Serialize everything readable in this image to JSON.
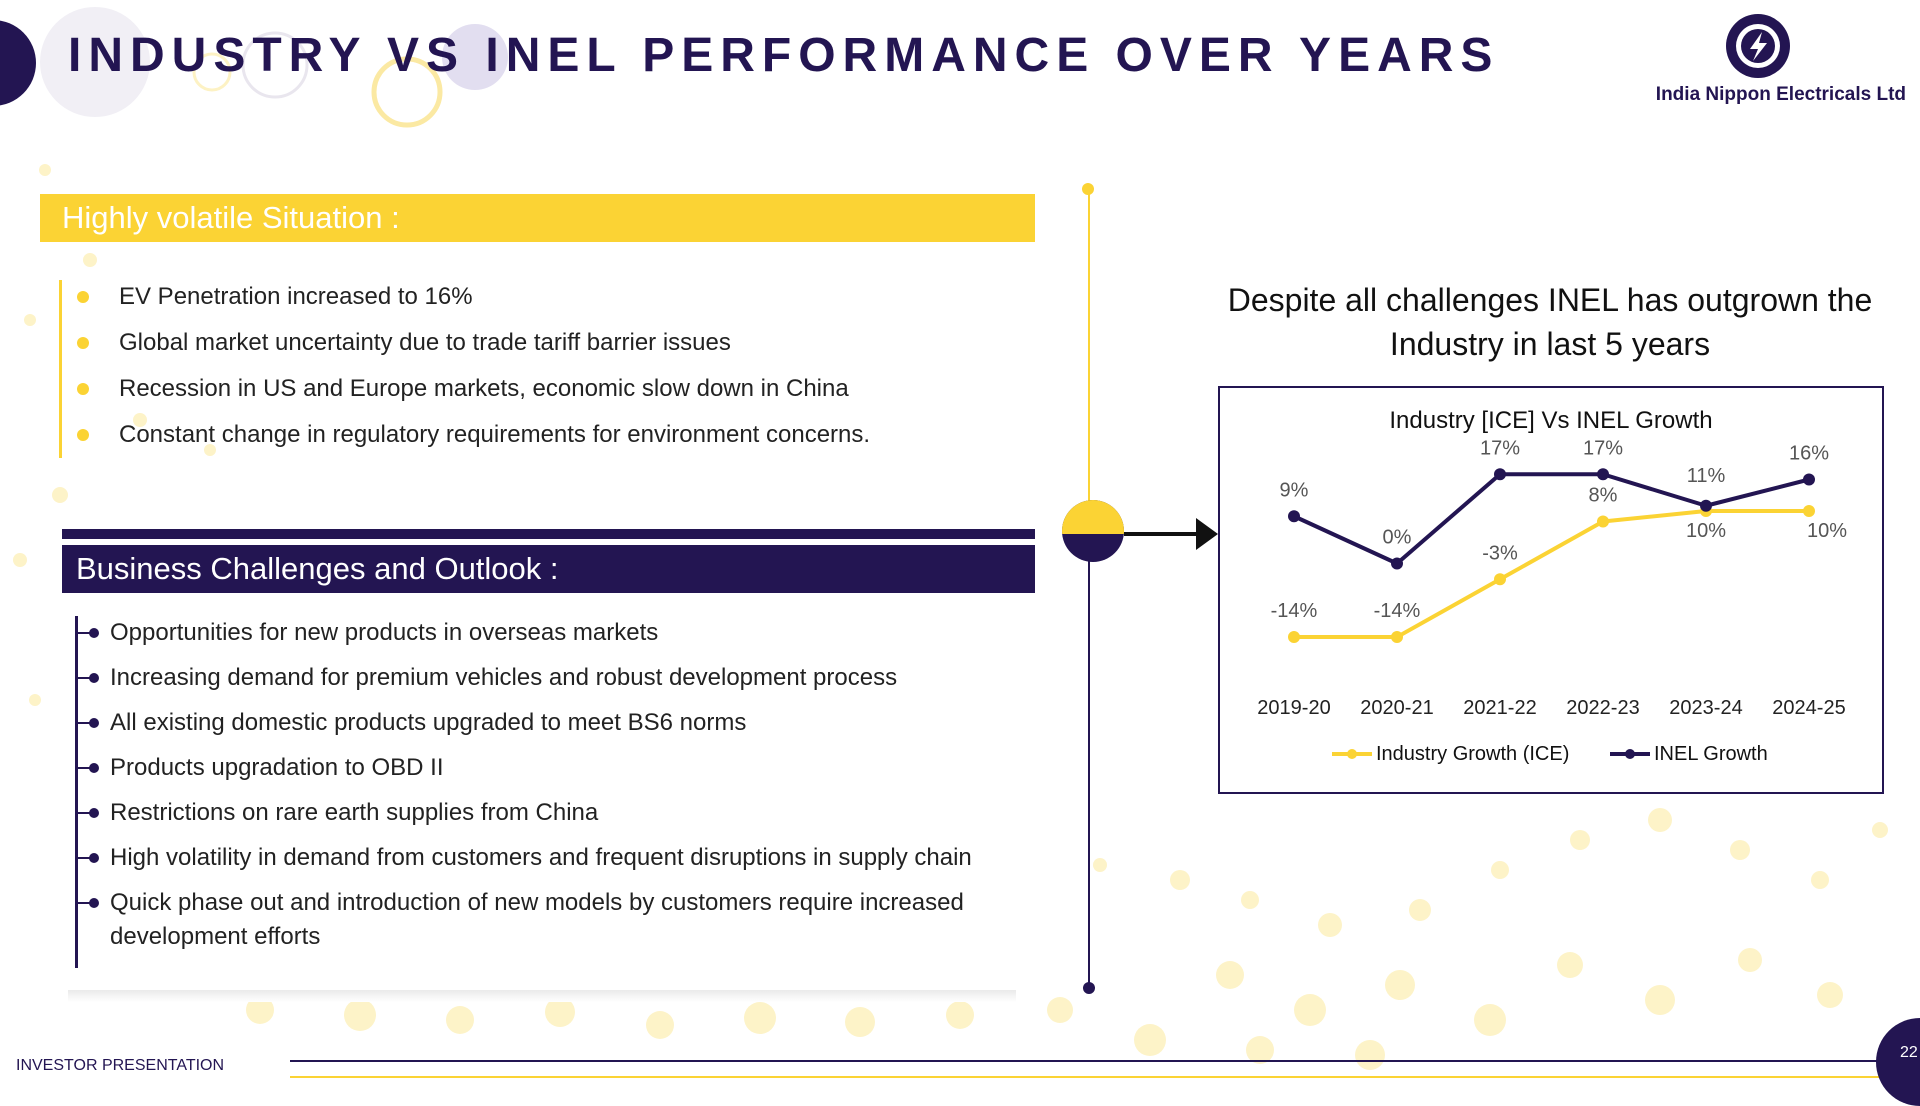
{
  "header": {
    "title": "INDUSTRY VS INEL PERFORMANCE OVER YEARS",
    "company": "India Nippon Electricals Ltd"
  },
  "situation": {
    "heading": "Highly volatile Situation :",
    "items": [
      "EV Penetration increased to 16%",
      "Global market uncertainty due to trade tariff barrier issues",
      "Recession in US and Europe markets, economic slow down in China",
      "Constant change in regulatory requirements for environment concerns."
    ]
  },
  "challenges": {
    "heading": "Business Challenges and Outlook :",
    "items": [
      "Opportunities for new products in overseas markets",
      "Increasing demand for premium  vehicles and robust development process",
      "All existing domestic products upgraded to meet BS6 norms",
      "Products upgradation to OBD II",
      "Restrictions on rare earth supplies from China",
      "High volatility in demand from customers and frequent disruptions in supply chain",
      "Quick phase out and introduction of new models by customers require increased development efforts"
    ]
  },
  "subtitle": "Despite all challenges INEL has outgrown the Industry in last 5 years",
  "chart_data": {
    "type": "line",
    "title": "Industry [ICE] Vs INEL Growth",
    "categories": [
      "2019-20",
      "2020-21",
      "2021-22",
      "2022-23",
      "2023-24",
      "2024-25"
    ],
    "series": [
      {
        "name": "Industry Growth (ICE)",
        "color": "#fbd334",
        "values": [
          -14,
          -14,
          -3,
          8,
          10,
          10
        ],
        "labels": [
          "-14%",
          "-14%",
          "-3%",
          "8%",
          "10%",
          "10%"
        ]
      },
      {
        "name": "INEL Growth",
        "color": "#231552",
        "values": [
          9,
          0,
          17,
          17,
          11,
          16
        ],
        "labels": [
          "9%",
          "0%",
          "17%",
          "17%",
          "11%",
          "16%"
        ]
      }
    ],
    "ylim": [
      -18,
      22
    ],
    "legend": "bottom"
  },
  "footer": {
    "label": "INVESTOR PRESENTATION",
    "page": "22"
  },
  "colors": {
    "primary": "#231552",
    "accent": "#fbd334"
  }
}
